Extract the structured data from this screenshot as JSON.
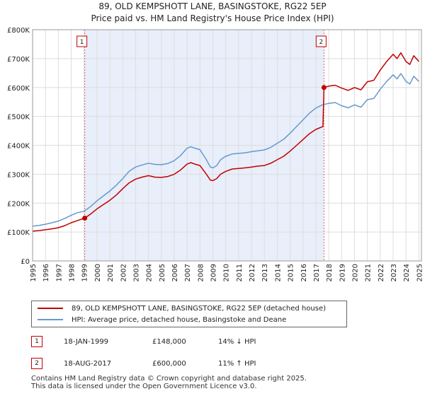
{
  "header": {
    "title_line1": "89, OLD KEMPSHOTT LANE, BASINGSTOKE, RG22 5EP",
    "title_line2": "Price paid vs. HM Land Registry's House Price Index (HPI)"
  },
  "colors": {
    "property": "#c00000",
    "hpi": "#6699cc",
    "shade": "#e8eefa",
    "grid": "#dddddd",
    "vline": "#e06666"
  },
  "chart_data": {
    "type": "line",
    "title": "89, OLD KEMPSHOTT LANE, BASINGSTOKE, RG22 5EP",
    "subtitle": "Price paid vs. HM Land Registry's House Price Index (HPI)",
    "xlabel": "",
    "ylabel": "",
    "xlim": [
      1995,
      2025.2
    ],
    "ylim": [
      0,
      800000
    ],
    "x_ticks": [
      1995,
      1996,
      1997,
      1998,
      1999,
      2000,
      2001,
      2002,
      2003,
      2004,
      2005,
      2006,
      2007,
      2008,
      2009,
      2010,
      2011,
      2012,
      2013,
      2014,
      2015,
      2016,
      2017,
      2018,
      2019,
      2020,
      2021,
      2022,
      2023,
      2024,
      2025
    ],
    "x_tick_labels": [
      "1995",
      "1996",
      "1997",
      "1998",
      "1999",
      "2000",
      "2001",
      "2002",
      "2003",
      "2004",
      "2005",
      "2006",
      "2007",
      "2008",
      "2009",
      "2010",
      "2011",
      "2012",
      "2013",
      "2014",
      "2015",
      "2016",
      "2017",
      "2018",
      "2019",
      "2020",
      "2021",
      "2022",
      "2023",
      "2024",
      "2025"
    ],
    "y_ticks": [
      0,
      100000,
      200000,
      300000,
      400000,
      500000,
      600000,
      700000,
      800000
    ],
    "y_tick_labels": [
      "£0",
      "£100K",
      "£200K",
      "£300K",
      "£400K",
      "£500K",
      "£600K",
      "£700K",
      "£800K"
    ],
    "grid": true,
    "shaded_period": [
      1999.05,
      2017.63
    ],
    "series": [
      {
        "name": "89, OLD KEMPSHOTT LANE, BASINGSTOKE, RG22 5EP (detached house)",
        "x": [
          1995,
          1995.5,
          1996,
          1996.5,
          1997,
          1997.5,
          1998,
          1998.5,
          1999.05,
          1999.5,
          2000,
          2000.5,
          2001,
          2001.5,
          2002,
          2002.5,
          2003,
          2003.5,
          2004,
          2004.5,
          2005,
          2005.5,
          2006,
          2006.5,
          2007,
          2007.3,
          2007.6,
          2008,
          2008.5,
          2008.8,
          2009,
          2009.3,
          2009.6,
          2010,
          2010.5,
          2011,
          2011.5,
          2012,
          2012.5,
          2013,
          2013.5,
          2014,
          2014.5,
          2015,
          2015.5,
          2016,
          2016.5,
          2017,
          2017.55,
          2017.63,
          2018,
          2018.5,
          2019,
          2019.5,
          2020,
          2020.5,
          2021,
          2021.5,
          2022,
          2022.5,
          2023,
          2023.3,
          2023.6,
          2024,
          2024.3,
          2024.6,
          2025
        ],
        "values": [
          103000,
          105000,
          108000,
          111000,
          115000,
          122000,
          132000,
          140000,
          148000,
          162000,
          180000,
          195000,
          210000,
          228000,
          250000,
          270000,
          283000,
          290000,
          295000,
          290000,
          289000,
          292000,
          300000,
          315000,
          335000,
          340000,
          335000,
          330000,
          300000,
          280000,
          278000,
          285000,
          300000,
          310000,
          318000,
          320000,
          322000,
          325000,
          328000,
          330000,
          338000,
          350000,
          362000,
          380000,
          400000,
          420000,
          440000,
          455000,
          465000,
          600000,
          605000,
          608000,
          598000,
          590000,
          600000,
          592000,
          620000,
          625000,
          660000,
          690000,
          715000,
          700000,
          720000,
          690000,
          680000,
          710000,
          690000
        ]
      },
      {
        "name": "HPI: Average price, detached house, Basingstoke and Deane",
        "x": [
          1995,
          1995.5,
          1996,
          1996.5,
          1997,
          1997.5,
          1998,
          1998.5,
          1999,
          1999.5,
          2000,
          2000.5,
          2001,
          2001.5,
          2002,
          2002.5,
          2003,
          2003.5,
          2004,
          2004.5,
          2005,
          2005.5,
          2006,
          2006.5,
          2007,
          2007.3,
          2007.6,
          2008,
          2008.5,
          2008.8,
          2009,
          2009.3,
          2009.6,
          2010,
          2010.5,
          2011,
          2011.5,
          2012,
          2012.5,
          2013,
          2013.5,
          2014,
          2014.5,
          2015,
          2015.5,
          2016,
          2016.5,
          2017,
          2017.5,
          2018,
          2018.5,
          2019,
          2019.5,
          2020,
          2020.5,
          2021,
          2021.5,
          2022,
          2022.5,
          2023,
          2023.3,
          2023.6,
          2024,
          2024.3,
          2024.6,
          2025
        ],
        "values": [
          120000,
          123000,
          127000,
          132000,
          138000,
          147000,
          158000,
          167000,
          172000,
          188000,
          208000,
          225000,
          242000,
          262000,
          285000,
          310000,
          325000,
          332000,
          338000,
          334000,
          333000,
          337000,
          347000,
          365000,
          390000,
          395000,
          390000,
          385000,
          350000,
          325000,
          322000,
          330000,
          350000,
          362000,
          370000,
          372000,
          374000,
          378000,
          381000,
          384000,
          393000,
          407000,
          421000,
          442000,
          465000,
          488000,
          511000,
          529000,
          540000,
          545000,
          548000,
          537000,
          530000,
          540000,
          532000,
          558000,
          562000,
          594000,
          621000,
          644000,
          630000,
          648000,
          621000,
          612000,
          639000,
          621000
        ]
      }
    ],
    "sales": [
      {
        "label": "1",
        "x": 1999.05,
        "value": 148000
      },
      {
        "label": "2",
        "x": 2017.63,
        "value": 600000
      }
    ]
  },
  "legend": {
    "property_label": "89, OLD KEMPSHOTT LANE, BASINGSTOKE, RG22 5EP (detached house)",
    "hpi_label": "HPI: Average price, detached house, Basingstoke and Deane"
  },
  "transactions": [
    {
      "num": "1",
      "date": "18-JAN-1999",
      "price": "£148,000",
      "hpi": "14% ↓ HPI"
    },
    {
      "num": "2",
      "date": "18-AUG-2017",
      "price": "£600,000",
      "hpi": "11% ↑ HPI"
    }
  ],
  "footer": {
    "line1": "Contains HM Land Registry data © Crown copyright and database right 2025.",
    "line2": "This data is licensed under the Open Government Licence v3.0."
  }
}
